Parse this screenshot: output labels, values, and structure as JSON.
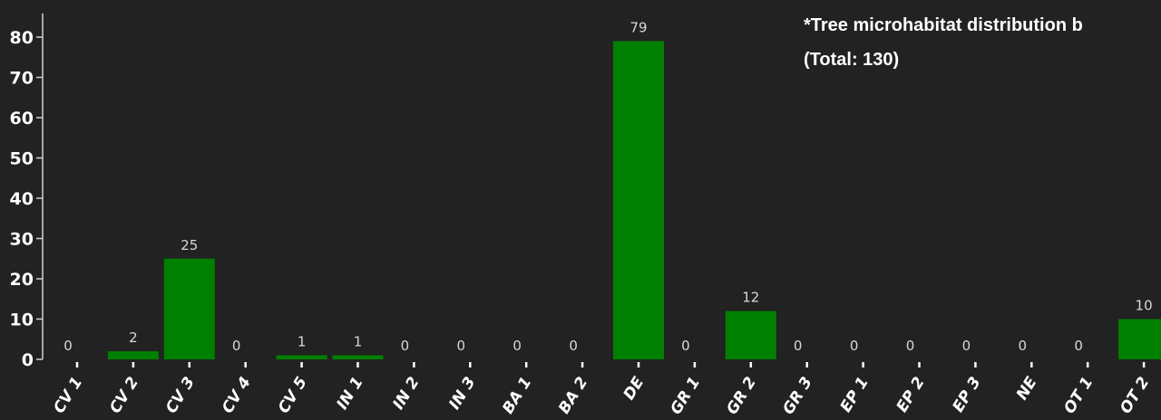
{
  "chart_data": {
    "type": "bar",
    "title_line1": "*Tree microhabitat distribution b",
    "title_line2": "(Total: 130)",
    "categories": [
      "CV 1",
      "CV 2",
      "CV 3",
      "CV 4",
      "CV 5",
      "IN 1",
      "IN 2",
      "IN 3",
      "BA 1",
      "BA 2",
      "DE",
      "GR 1",
      "GR 2",
      "GR 3",
      "EP 1",
      "EP 2",
      "EP 3",
      "NE",
      "OT 1",
      "OT 2"
    ],
    "values": [
      0,
      2,
      25,
      0,
      1,
      1,
      0,
      0,
      0,
      0,
      79,
      0,
      12,
      0,
      0,
      0,
      0,
      0,
      0,
      10
    ],
    "y_ticks": [
      0,
      10,
      20,
      30,
      40,
      50,
      60,
      70,
      80
    ],
    "ylim": [
      0,
      85
    ],
    "bar_color": "#008000",
    "background": "#222222",
    "grid": false
  }
}
